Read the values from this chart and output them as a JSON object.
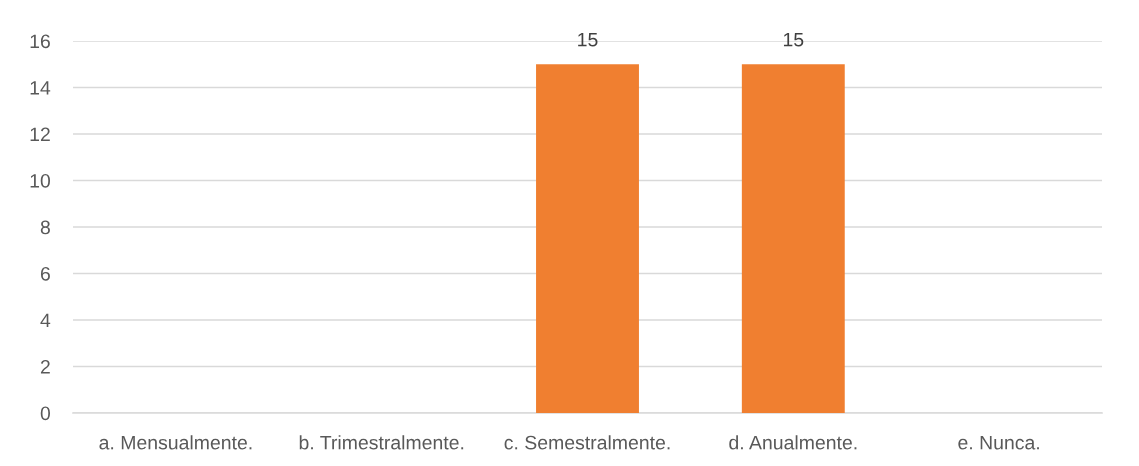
{
  "chart_data": {
    "type": "bar",
    "categories": [
      "a. Mensualmente.",
      "b. Trimestralmente.",
      "c. Semestralmente.",
      "d. Anualmente.",
      "e. Nunca."
    ],
    "values": [
      null,
      null,
      15,
      15,
      null
    ],
    "value_labels": [
      null,
      null,
      "15",
      "15",
      null
    ],
    "color": "#f07f30",
    "ylim": [
      0,
      16
    ],
    "yticks": [
      0,
      2,
      4,
      6,
      8,
      10,
      12,
      14,
      16
    ],
    "grid": "y",
    "legend": false
  }
}
